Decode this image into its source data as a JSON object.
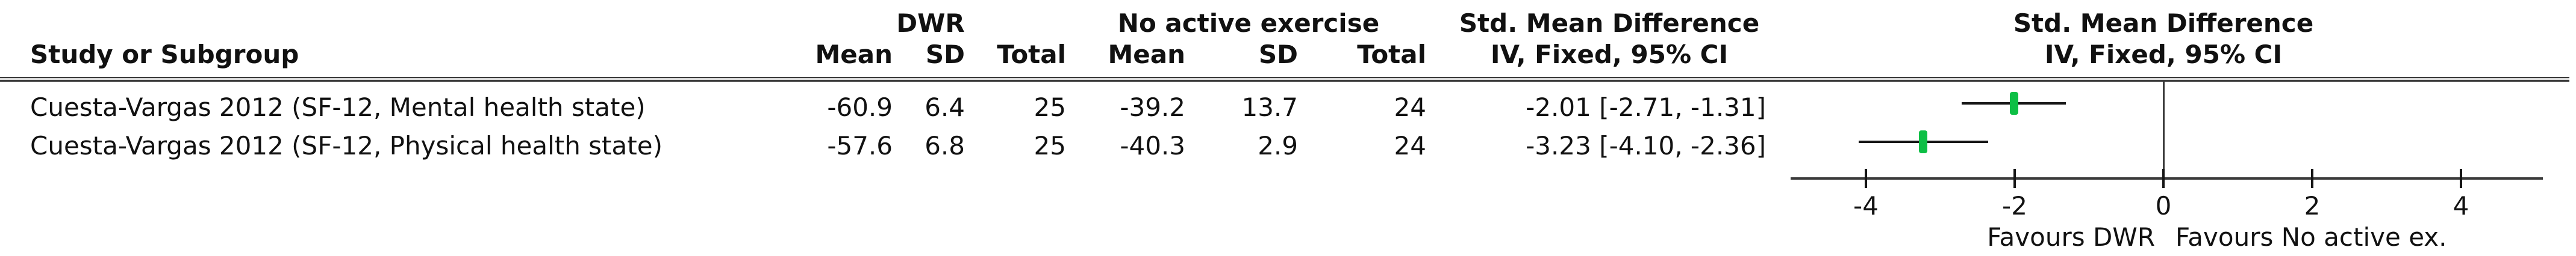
{
  "table": {
    "study_header": "Study or Subgroup",
    "group1_label": "DWR",
    "group2_label": "No active exercise",
    "smd_header": "Std. Mean Difference",
    "ci_method_header": "IV, Fixed, 95% CI",
    "col_mean": "Mean",
    "col_sd": "SD",
    "col_total": "Total",
    "rows": [
      {
        "study": "Cuesta-Vargas 2012 (SF-12, Mental health state)",
        "mean1": "-60.9",
        "sd1": "6.4",
        "total1": "25",
        "mean2": "-39.2",
        "sd2": "13.7",
        "total2": "24",
        "smd_ci": "-2.01 [-2.71, -1.31]"
      },
      {
        "study": "Cuesta-Vargas 2012 (SF-12, Physical health state)",
        "mean1": "-57.6",
        "sd1": "6.8",
        "total1": "25",
        "mean2": "-40.3",
        "sd2": "2.9",
        "total2": "24",
        "smd_ci": "-3.23 [-4.10, -2.36]"
      }
    ]
  },
  "plot": {
    "favours_left": "Favours DWR",
    "favours_right": "Favours No active ex."
  },
  "chart_data": {
    "type": "forest",
    "title": "Std. Mean Difference",
    "method": "IV, Fixed, 95% CI",
    "xlabel_left": "Favours DWR",
    "xlabel_right": "Favours No active ex.",
    "x_axis": {
      "ticks": [
        -4,
        -2,
        0,
        2,
        4
      ],
      "range": [
        -5,
        5.1
      ],
      "zero_line": true
    },
    "marker_color": "#0dbf45",
    "studies": [
      {
        "name": "Cuesta-Vargas 2012 (SF-12, Mental health state)",
        "group1": {
          "label": "DWR",
          "mean": -60.9,
          "sd": 6.4,
          "total": 25
        },
        "group2": {
          "label": "No active exercise",
          "mean": -39.2,
          "sd": 13.7,
          "total": 24
        },
        "smd": -2.01,
        "ci_lower": -2.71,
        "ci_upper": -1.31
      },
      {
        "name": "Cuesta-Vargas 2012 (SF-12, Physical health state)",
        "group1": {
          "label": "DWR",
          "mean": -57.6,
          "sd": 6.8,
          "total": 25
        },
        "group2": {
          "label": "No active exercise",
          "mean": -40.3,
          "sd": 2.9,
          "total": 24
        },
        "smd": -3.23,
        "ci_lower": -4.1,
        "ci_upper": -2.36
      }
    ]
  }
}
